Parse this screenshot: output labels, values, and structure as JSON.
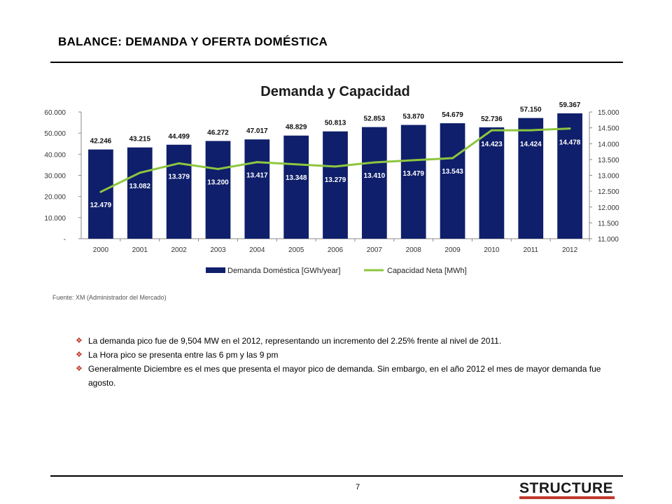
{
  "header": {
    "title": "BALANCE: DEMANDA Y OFERTA DOMÉSTICA"
  },
  "chart_data": {
    "type": "bar",
    "title": "Demanda y Capacidad",
    "categories": [
      "2000",
      "2001",
      "2002",
      "2003",
      "2004",
      "2005",
      "2006",
      "2007",
      "2008",
      "2009",
      "2010",
      "2011",
      "2012"
    ],
    "series": [
      {
        "name": "Demanda Doméstica  [GWh/year]",
        "type": "bar",
        "axis": "left",
        "values": [
          42246,
          43215,
          44499,
          46272,
          47017,
          48829,
          50813,
          52853,
          53870,
          54679,
          52736,
          57150,
          59367
        ],
        "labels": [
          "42.246",
          "43.215",
          "44.499",
          "46.272",
          "47.017",
          "48.829",
          "50.813",
          "52.853",
          "53.870",
          "54.679",
          "52.736",
          "57.150",
          "59.367"
        ],
        "color": "#0f1f6b"
      },
      {
        "name": "Capacidad Neta [MWh]",
        "type": "line",
        "axis": "right",
        "values": [
          12479,
          13082,
          13379,
          13200,
          13417,
          13348,
          13279,
          13410,
          13479,
          13543,
          14423,
          14424,
          14478
        ],
        "labels": [
          "12.479",
          "13.082",
          "13.379",
          "13.200",
          "13.417",
          "13.348",
          "13.279",
          "13.410",
          "13.479",
          "13.543",
          "14.423",
          "14.424",
          "14.478"
        ],
        "color": "#8dc63f"
      }
    ],
    "ylim_left": [
      0,
      60000
    ],
    "ylim_right": [
      11000,
      15000
    ],
    "left_ticks": [
      "-",
      "10.000",
      "20.000",
      "30.000",
      "40.000",
      "50.000",
      "60.000"
    ],
    "right_ticks": [
      "11.000",
      "11.500",
      "12.000",
      "12.500",
      "13.000",
      "13.500",
      "14.000",
      "14.500",
      "15.000"
    ],
    "legend": "bottom",
    "grid": false
  },
  "source": "Fuente: XM (Administrador del Mercado)",
  "bullets": [
    "La demanda pico fue de 9,504 MW en el 2012, representando un incremento del 2.25% frente al nivel de 2011.",
    "La Hora pico se presenta entre las 6 pm y las 9 pm",
    "Generalmente Diciembre es el mes que presenta el mayor pico de demanda. Sin embargo, en el año 2012 el mes de mayor demanda fue agosto."
  ],
  "footer": {
    "page_number": "7",
    "logo": "STRUCTURE"
  }
}
